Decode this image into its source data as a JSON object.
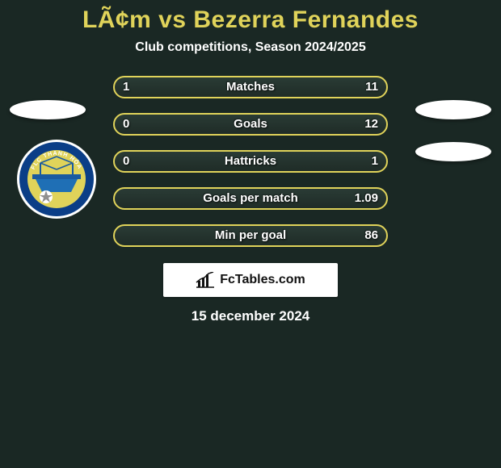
{
  "title": "LÃ¢m vs Bezerra Fernandes",
  "subtitle": "Club competitions, Season 2024/2025",
  "date": "15 december 2024",
  "colors": {
    "background": "#1a2824",
    "title": "#e0d35a",
    "stat_border": "#e0d35a",
    "text": "#ffffff",
    "brand_bg": "#ffffff",
    "brand_text": "#111111"
  },
  "stats": {
    "rows": [
      {
        "label": "Matches",
        "left": "1",
        "right": "11"
      },
      {
        "label": "Goals",
        "left": "0",
        "right": "12"
      },
      {
        "label": "Hattricks",
        "left": "0",
        "right": "1"
      },
      {
        "label": "Goals per match",
        "left": "",
        "right": "1.09"
      },
      {
        "label": "Min per goal",
        "left": "",
        "right": "86"
      }
    ]
  },
  "brand": {
    "icon_name": "chart-bar-icon",
    "text": "FcTables.com"
  },
  "club_badge": {
    "top_text": "FLC THANH HÓA",
    "colors": {
      "outer": "#ffffff",
      "ring": "#0b3e87",
      "field": "#e0d35a",
      "bridge": "#1a5aa0"
    }
  }
}
